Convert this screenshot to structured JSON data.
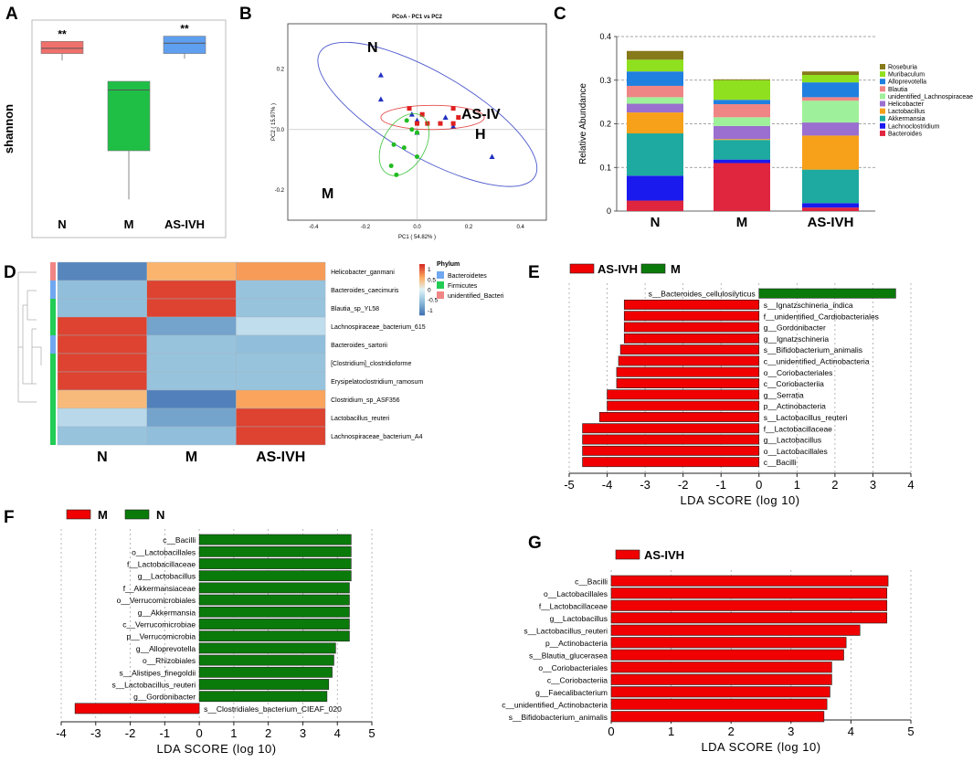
{
  "colors": {
    "red": "#f00000",
    "green": "#0a7a0a",
    "boxN": "#f0706c",
    "boxM": "#1fbf46",
    "boxAS": "#5f9ff0",
    "pcoaRed": "#e02020",
    "pcoaGreen": "#22bb22",
    "pcoaBlue": "#2030c0"
  },
  "chart_data": [
    {
      "panel": "A",
      "type": "box",
      "ylabel": "shannon",
      "categories": [
        "N",
        "M",
        "AS-IVH"
      ],
      "boxes": [
        {
          "name": "N",
          "whisker_low": 0.82,
          "q1": 0.86,
          "median": 0.89,
          "q3": 0.93,
          "whisker_high": 0.93,
          "color": "#f0706c",
          "sig": "**"
        },
        {
          "name": "M",
          "whisker_low": 0.02,
          "q1": 0.3,
          "median": 0.65,
          "q3": 0.7,
          "whisker_high": 0.7,
          "color": "#1fbf46",
          "sig": ""
        },
        {
          "name": "AS-IVH",
          "whisker_low": 0.83,
          "q1": 0.86,
          "median": 0.92,
          "q3": 0.96,
          "whisker_high": 0.96,
          "color": "#5f9ff0",
          "sig": "**"
        }
      ]
    },
    {
      "panel": "B",
      "type": "scatter",
      "title": "PCoA - PC1 vs PC2",
      "xlabel": "PC1 ( 54.82% )",
      "ylabel": "PC2 ( 15.97% )",
      "xticks": [
        "-0.4",
        "-0.2",
        "0.0",
        "0.2",
        "0.4"
      ],
      "yticks": [
        "0.2",
        "0.0",
        "-0.2"
      ],
      "xlim": [
        -0.5,
        0.5
      ],
      "ylim": [
        -0.3,
        0.35
      ],
      "group_labels": [
        "N",
        "AS-IV",
        "H",
        "M"
      ],
      "groups": [
        {
          "name": "N",
          "marker": "triangle",
          "color": "#2030c0",
          "points": [
            [
              -0.14,
              0.18
            ],
            [
              -0.14,
              0.1
            ],
            [
              -0.02,
              0.05
            ],
            [
              0.0,
              0.03
            ],
            [
              0.11,
              0.04
            ],
            [
              0.0,
              -0.01
            ],
            [
              0.14,
              0.01
            ],
            [
              0.29,
              -0.09
            ]
          ],
          "ellipse": {
            "cx": 0.04,
            "cy": 0.05,
            "rx": 0.48,
            "ry": 0.14,
            "angle_deg": 30
          }
        },
        {
          "name": "H",
          "marker": "square",
          "color": "#e02020",
          "points": [
            [
              -0.03,
              0.07
            ],
            [
              0.02,
              0.05
            ],
            [
              0.04,
              0.02
            ],
            [
              0.09,
              0.02
            ],
            [
              0.14,
              0.02
            ],
            [
              0.14,
              0.07
            ],
            [
              0.16,
              0.04
            ],
            [
              0.0,
              0.02
            ]
          ],
          "ellipse": {
            "cx": 0.06,
            "cy": 0.04,
            "rx": 0.2,
            "ry": 0.04,
            "angle_deg": 0
          }
        },
        {
          "name": "M",
          "marker": "circle",
          "color": "#22bb22",
          "points": [
            [
              -0.04,
              0.03
            ],
            [
              -0.02,
              0.0
            ],
            [
              0.0,
              -0.01
            ],
            [
              -0.09,
              -0.05
            ],
            [
              -0.05,
              -0.06
            ],
            [
              0.0,
              -0.09
            ],
            [
              -0.1,
              -0.12
            ],
            [
              -0.08,
              -0.15
            ]
          ],
          "ellipse": {
            "cx": -0.05,
            "cy": -0.05,
            "rx": 0.13,
            "ry": 0.07,
            "angle_deg": -60
          }
        }
      ]
    },
    {
      "panel": "C",
      "type": "bar",
      "stacked": true,
      "ylabel": "Relative Abundance",
      "ylim": [
        0,
        0.4
      ],
      "yticks": [
        "0",
        "0.1",
        "0.2",
        "0.3",
        "0.4"
      ],
      "categories": [
        "N",
        "M",
        "AS-IVH"
      ],
      "series": [
        {
          "name": "Bacteroides",
          "color": "#e0253f",
          "values": [
            0.024,
            0.11,
            0.008
          ]
        },
        {
          "name": "Lachnoclostridium",
          "color": "#1a1aee",
          "values": [
            0.057,
            0.008,
            0.01
          ]
        },
        {
          "name": "Akkermansia",
          "color": "#1eaaa0",
          "values": [
            0.097,
            0.045,
            0.077
          ]
        },
        {
          "name": "Lactobacillus",
          "color": "#f7a11a",
          "values": [
            0.048,
            0.002,
            0.078
          ]
        },
        {
          "name": "Helicobacter",
          "color": "#9a6fcf",
          "values": [
            0.02,
            0.03,
            0.03
          ]
        },
        {
          "name": "unidentified_Lachnospiraceae",
          "color": "#9ff09a",
          "values": [
            0.015,
            0.02,
            0.05
          ]
        },
        {
          "name": "Blautia",
          "color": "#f08585",
          "values": [
            0.026,
            0.03,
            0.008
          ]
        },
        {
          "name": "Alloprevotella",
          "color": "#2080e0",
          "values": [
            0.033,
            0.01,
            0.034
          ]
        },
        {
          "name": "Muribaculum",
          "color": "#8fe01e",
          "values": [
            0.027,
            0.045,
            0.017
          ]
        },
        {
          "name": "Roseburia",
          "color": "#867a1a",
          "values": [
            0.02,
            0.002,
            0.008
          ]
        }
      ]
    },
    {
      "panel": "D",
      "type": "heatmap",
      "columns": [
        "N",
        "M",
        "AS-IVH"
      ],
      "rows": [
        "Helicobacter_ganmani",
        "Bacteroides_caecimuris",
        "Blautia_sp_YL58",
        "Lachnospiraceae_bacterium_615",
        "Bacteroides_sartorii",
        "[Clostridium]_clostridioforme",
        "Erysipelatoclostridium_ramosum",
        "Clostridium_sp_ASF356",
        "Lactobacillus_reuteri",
        "Lachnospiraceae_bacterium_A4"
      ],
      "row_phylum": [
        "unidentified_Bacteri",
        "Bacteroidetes",
        "Firmicutes",
        "Firmicutes",
        "Bacteroidetes",
        "Firmicutes",
        "Firmicutes",
        "Firmicutes",
        "Firmicutes",
        "Firmicutes"
      ],
      "values": [
        [
          -1.1,
          0.55,
          0.7
        ],
        [
          -0.6,
          1.15,
          -0.55
        ],
        [
          -0.6,
          1.15,
          -0.55
        ],
        [
          1.15,
          -0.85,
          -0.25
        ],
        [
          1.15,
          -0.55,
          -0.6
        ],
        [
          1.15,
          -0.55,
          -0.55
        ],
        [
          1.15,
          -0.55,
          -0.55
        ],
        [
          0.5,
          -1.15,
          0.65
        ],
        [
          -0.3,
          -0.85,
          1.15
        ],
        [
          -0.55,
          -0.6,
          1.15
        ]
      ],
      "colorbar_ticks": [
        "1",
        "0.5",
        "0",
        "-0.5",
        "-1"
      ],
      "legend_title": "Phylum",
      "legend": [
        {
          "name": "Bacteroidetes",
          "color": "#6fa8f0"
        },
        {
          "name": "Firmicutes",
          "color": "#22cc55"
        },
        {
          "name": "unidentified_Bacteri",
          "color": "#f08585"
        }
      ]
    },
    {
      "panel": "E",
      "type": "bar",
      "orientation": "horizontal",
      "xlabel": "LDA SCORE (log 10)",
      "xlim": [
        -5,
        4
      ],
      "xticks": [
        "-5",
        "-4",
        "-3",
        "-2",
        "-1",
        "0",
        "1",
        "2",
        "3",
        "4"
      ],
      "legend": [
        "AS-IVH",
        "M"
      ],
      "categories": [
        "s__Bacteroides_cellulosilyticus",
        "s__Ignatzschineria_indica",
        "f__unidentified_Cardiobacteriales",
        "g__Gordonibacter",
        "g__Ignatzschineria",
        "s__Bifidobacterium_animalis",
        "c__unidentified_Actinobacteria",
        "o__Coriobacteriales",
        "c__Coriobacteriia",
        "g__Serratia",
        "p__Actinobacteria",
        "s__Lactobacillus_reuteri",
        "f__Lactobacillaceae",
        "g__Lactobacillus",
        "o__Lactobacillales",
        "c__Bacilli"
      ],
      "values": [
        3.6,
        -3.55,
        -3.55,
        -3.55,
        -3.55,
        -3.65,
        -3.7,
        -3.75,
        -3.75,
        -4.0,
        -4.0,
        -4.2,
        -4.65,
        -4.65,
        -4.65,
        -4.65
      ],
      "groups": [
        "M",
        "AS-IVH",
        "AS-IVH",
        "AS-IVH",
        "AS-IVH",
        "AS-IVH",
        "AS-IVH",
        "AS-IVH",
        "AS-IVH",
        "AS-IVH",
        "AS-IVH",
        "AS-IVH",
        "AS-IVH",
        "AS-IVH",
        "AS-IVH",
        "AS-IVH"
      ]
    },
    {
      "panel": "F",
      "type": "bar",
      "orientation": "horizontal",
      "xlabel": "LDA SCORE (log 10)",
      "xlim": [
        -4,
        5
      ],
      "xticks": [
        "-4",
        "-3",
        "-2",
        "-1",
        "0",
        "1",
        "2",
        "3",
        "4",
        "5"
      ],
      "legend": [
        "M",
        "N"
      ],
      "categories": [
        "c__Bacilli",
        "o__Lactobacillales",
        "f__Lactobacillaceae",
        "g__Lactobacillus",
        "f__Akkermansiaceae",
        "o__Verrucomicrobiales",
        "g__Akkermansia",
        "c__Verrucomicrobiae",
        "p__Verrucomicrobia",
        "g__Alloprevotella",
        "o__Rhizobiales",
        "s__Alistipes_finegoldii",
        "s__Lactobacillus_reuteri",
        "g__Gordonibacter",
        "s__Clostridiales_bacterium_CIEAF_020"
      ],
      "values": [
        4.4,
        4.4,
        4.4,
        4.4,
        4.35,
        4.35,
        4.35,
        4.35,
        4.35,
        3.95,
        3.9,
        3.85,
        3.75,
        3.7,
        -3.6
      ],
      "groups": [
        "N",
        "N",
        "N",
        "N",
        "N",
        "N",
        "N",
        "N",
        "N",
        "N",
        "N",
        "N",
        "N",
        "N",
        "M"
      ]
    },
    {
      "panel": "G",
      "type": "bar",
      "orientation": "horizontal",
      "xlabel": "LDA SCORE (log 10)",
      "xlim": [
        0,
        5
      ],
      "xticks": [
        "0",
        "1",
        "2",
        "3",
        "4",
        "5"
      ],
      "legend": [
        "AS-IVH"
      ],
      "categories": [
        "c__Bacilli",
        "o__Lactobacillales",
        "f__Lactobacillaceae",
        "g__Lactobacillus",
        "s__Lactobacillus_reuteri",
        "p__Actinobacteria",
        "s__Blautia_glucerasea",
        "o__Coriobacteriales",
        "c__Coriobacteriia",
        "g__Faecalibacterium",
        "c__unidentified_Actinobacteria",
        "s__Bifidobacterium_animalis"
      ],
      "values": [
        4.62,
        4.6,
        4.6,
        4.6,
        4.15,
        3.92,
        3.88,
        3.68,
        3.68,
        3.65,
        3.6,
        3.55
      ],
      "groups": [
        "AS-IVH",
        "AS-IVH",
        "AS-IVH",
        "AS-IVH",
        "AS-IVH",
        "AS-IVH",
        "AS-IVH",
        "AS-IVH",
        "AS-IVH",
        "AS-IVH",
        "AS-IVH",
        "AS-IVH"
      ]
    }
  ]
}
